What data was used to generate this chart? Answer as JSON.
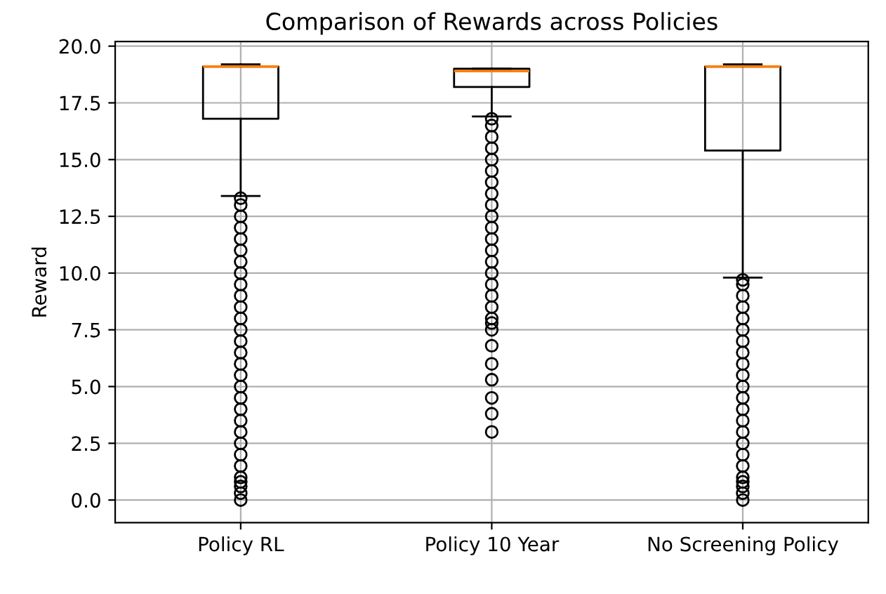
{
  "chart_data": {
    "type": "box",
    "title": "Comparison of Rewards across Policies",
    "ylabel": "Reward",
    "categories": [
      "Policy RL",
      "Policy 10 Year",
      "No Screening Policy"
    ],
    "boxes": [
      {
        "low": 13.4,
        "q1": 16.8,
        "median": 19.1,
        "q3": 19.1,
        "high": 19.2,
        "outliers": [
          0,
          0.3,
          0.6,
          0.8,
          1.0,
          1.5,
          2.0,
          2.5,
          3.0,
          3.5,
          4.0,
          4.5,
          5.0,
          5.5,
          6.0,
          6.5,
          7.0,
          7.5,
          8.0,
          8.5,
          9.0,
          9.5,
          10.0,
          10.5,
          11.0,
          11.5,
          12.0,
          12.5,
          13.0,
          13.3
        ]
      },
      {
        "low": 16.9,
        "q1": 18.2,
        "median": 18.9,
        "q3": 19.0,
        "high": 19.0,
        "outliers": [
          3.0,
          3.8,
          4.5,
          5.3,
          6.0,
          6.8,
          7.5,
          7.8,
          8.0,
          8.5,
          9.0,
          9.5,
          10.0,
          10.5,
          11.0,
          11.5,
          12.0,
          12.5,
          13.0,
          13.5,
          14.0,
          14.5,
          15.0,
          15.5,
          16.0,
          16.5,
          16.8
        ]
      },
      {
        "low": 9.8,
        "q1": 15.4,
        "median": 19.1,
        "q3": 19.1,
        "high": 19.2,
        "outliers": [
          0,
          0.3,
          0.6,
          0.8,
          1.0,
          1.5,
          2.0,
          2.5,
          3.0,
          3.5,
          4.0,
          4.5,
          5.0,
          5.5,
          6.0,
          6.5,
          7.0,
          7.5,
          8.0,
          8.5,
          9.0,
          9.5,
          9.7
        ]
      }
    ],
    "colors": [
      "#000000",
      "#000000",
      "#000000"
    ],
    "ylim": [
      -1.0,
      20.2
    ],
    "yticks": [
      {
        "value": 0,
        "label": "0.0"
      },
      {
        "value": 2.5,
        "label": "2.5"
      },
      {
        "value": 5,
        "label": "5.0"
      },
      {
        "value": 7.5,
        "label": "7.5"
      },
      {
        "value": 10,
        "label": "10.0"
      },
      {
        "value": 12.5,
        "label": "12.5"
      },
      {
        "value": 15,
        "label": "15.0"
      },
      {
        "value": 17.5,
        "label": "17.5"
      },
      {
        "value": 20,
        "label": "20.0"
      }
    ],
    "grid": true,
    "marker": "circle"
  }
}
